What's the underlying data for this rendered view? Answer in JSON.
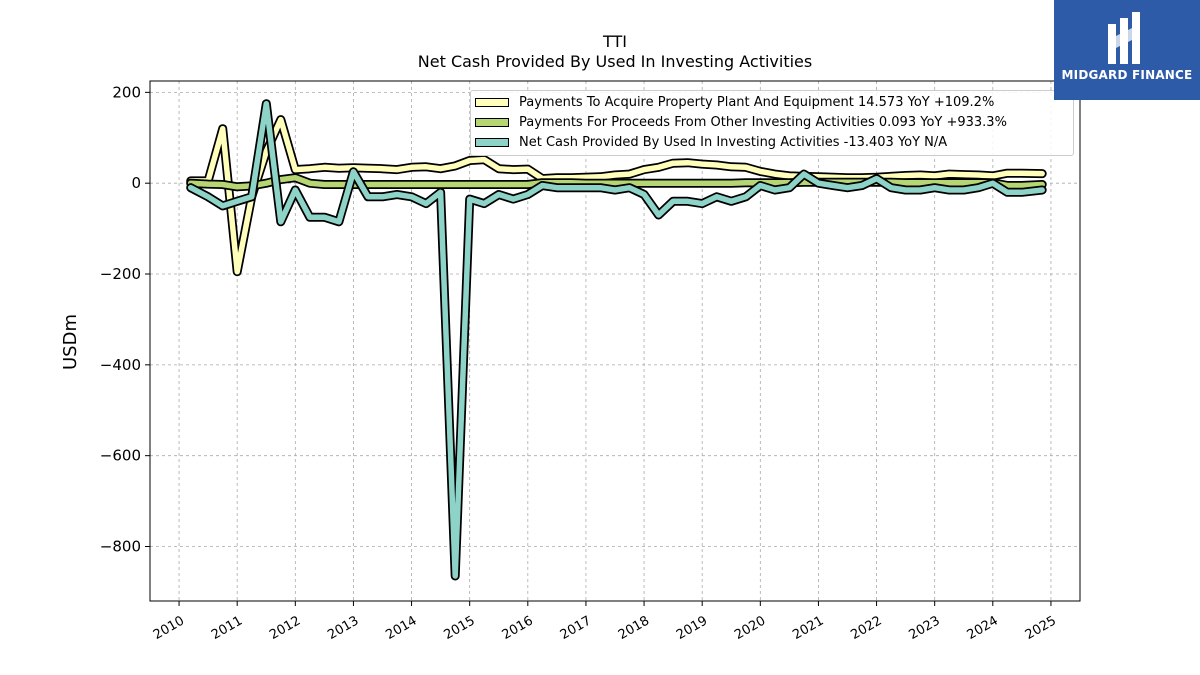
{
  "header": {
    "ticker": "TTI",
    "subtitle": "Net Cash Provided By Used In Investing Activities"
  },
  "logo": {
    "text": "MIDGARD FINANCE",
    "icon": "midgard-logo-icon",
    "background": "#2e5ba8"
  },
  "legend": {
    "items": [
      {
        "label": "Payments To Acquire Property Plant And Equipment  14.573 YoY +109.2%",
        "color": "#ffffbb"
      },
      {
        "label": "Payments For Proceeds From Other Investing Activities  0.093 YoY +933.3%",
        "color": "#b5d672"
      },
      {
        "label": "Net Cash Provided By Used In Investing Activities  -13.403 YoY N/A",
        "color": "#8dd3c7"
      }
    ]
  },
  "chart_data": {
    "type": "line",
    "ylabel": "USDm",
    "xlim": [
      2009.5,
      2025.5
    ],
    "ylim": [
      -920,
      225
    ],
    "yticks": [
      200,
      0,
      -200,
      -400,
      -600,
      -800
    ],
    "ytick_labels": [
      "200",
      "0",
      "−200",
      "−400",
      "−600",
      "−800"
    ],
    "xticks": [
      2010,
      2011,
      2012,
      2013,
      2014,
      2015,
      2016,
      2017,
      2018,
      2019,
      2020,
      2021,
      2022,
      2023,
      2024,
      2025
    ],
    "grid": true,
    "legend_position": "upper-right",
    "series": [
      {
        "name": "Payments To Acquire Property Plant And Equipment",
        "color": "#ffffbb",
        "points": [
          [
            2010.2,
            5
          ],
          [
            2010.5,
            5
          ],
          [
            2010.75,
            120
          ],
          [
            2011.0,
            -195
          ],
          [
            2011.25,
            -30
          ],
          [
            2011.5,
            70
          ],
          [
            2011.75,
            140
          ],
          [
            2012.0,
            30
          ],
          [
            2012.25,
            32
          ],
          [
            2012.5,
            35
          ],
          [
            2012.75,
            33
          ],
          [
            2013.0,
            34
          ],
          [
            2013.25,
            33
          ],
          [
            2013.5,
            32
          ],
          [
            2013.75,
            30
          ],
          [
            2014.0,
            35
          ],
          [
            2014.25,
            36
          ],
          [
            2014.5,
            32
          ],
          [
            2014.75,
            38
          ],
          [
            2015.0,
            50
          ],
          [
            2015.25,
            52
          ],
          [
            2015.5,
            32
          ],
          [
            2015.75,
            30
          ],
          [
            2016.0,
            31
          ],
          [
            2016.25,
            10
          ],
          [
            2016.5,
            12
          ],
          [
            2016.75,
            12
          ],
          [
            2017.0,
            13
          ],
          [
            2017.25,
            14
          ],
          [
            2017.5,
            18
          ],
          [
            2017.75,
            20
          ],
          [
            2018.0,
            30
          ],
          [
            2018.25,
            35
          ],
          [
            2018.5,
            44
          ],
          [
            2018.75,
            45
          ],
          [
            2019.0,
            42
          ],
          [
            2019.25,
            40
          ],
          [
            2019.5,
            36
          ],
          [
            2019.75,
            35
          ],
          [
            2020.0,
            26
          ],
          [
            2020.25,
            20
          ],
          [
            2020.5,
            16
          ],
          [
            2020.75,
            15
          ],
          [
            2021.0,
            14
          ],
          [
            2021.25,
            13
          ],
          [
            2021.5,
            12
          ],
          [
            2021.75,
            12
          ],
          [
            2022.0,
            13
          ],
          [
            2022.25,
            15
          ],
          [
            2022.5,
            17
          ],
          [
            2022.75,
            18
          ],
          [
            2023.0,
            16
          ],
          [
            2023.25,
            20
          ],
          [
            2023.5,
            19
          ],
          [
            2023.75,
            18
          ],
          [
            2024.0,
            16
          ],
          [
            2024.25,
            22
          ],
          [
            2024.5,
            22
          ],
          [
            2024.85,
            21
          ]
        ]
      },
      {
        "name": "Payments For Proceeds From Other Investing Activities",
        "color": "#b5d672",
        "points": [
          [
            2010.2,
            0
          ],
          [
            2010.5,
            -2
          ],
          [
            2010.75,
            -3
          ],
          [
            2011.0,
            -8
          ],
          [
            2011.25,
            -6
          ],
          [
            2011.5,
            0
          ],
          [
            2011.75,
            8
          ],
          [
            2012.0,
            12
          ],
          [
            2012.25,
            0
          ],
          [
            2012.5,
            -3
          ],
          [
            2012.75,
            -3
          ],
          [
            2013.0,
            -3
          ],
          [
            2013.25,
            -3
          ],
          [
            2013.5,
            -3
          ],
          [
            2013.75,
            -3
          ],
          [
            2014.0,
            -3
          ],
          [
            2014.25,
            -3
          ],
          [
            2014.5,
            -3
          ],
          [
            2014.75,
            -3
          ],
          [
            2015.0,
            -3
          ],
          [
            2015.25,
            -3
          ],
          [
            2015.5,
            -3
          ],
          [
            2015.75,
            -3
          ],
          [
            2016.0,
            -3
          ],
          [
            2016.25,
            1
          ],
          [
            2016.5,
            1
          ],
          [
            2016.75,
            1
          ],
          [
            2017.0,
            0
          ],
          [
            2017.25,
            0
          ],
          [
            2017.5,
            0
          ],
          [
            2017.75,
            0
          ],
          [
            2018.0,
            0
          ],
          [
            2018.25,
            0
          ],
          [
            2018.5,
            0
          ],
          [
            2018.75,
            0
          ],
          [
            2019.0,
            0
          ],
          [
            2019.25,
            0
          ],
          [
            2019.5,
            0
          ],
          [
            2019.75,
            1
          ],
          [
            2020.0,
            1
          ],
          [
            2020.25,
            1
          ],
          [
            2020.5,
            1
          ],
          [
            2020.75,
            2
          ],
          [
            2021.0,
            2
          ],
          [
            2021.25,
            2
          ],
          [
            2021.5,
            2
          ],
          [
            2021.75,
            2
          ],
          [
            2022.0,
            2
          ],
          [
            2022.25,
            2
          ],
          [
            2022.5,
            1
          ],
          [
            2022.75,
            1
          ],
          [
            2023.0,
            1
          ],
          [
            2023.25,
            1
          ],
          [
            2023.5,
            1
          ],
          [
            2023.75,
            1
          ],
          [
            2024.0,
            1
          ],
          [
            2024.25,
            -5
          ],
          [
            2024.5,
            -5
          ],
          [
            2024.85,
            -3
          ]
        ]
      },
      {
        "name": "Net Cash Provided By Used In Investing Activities",
        "color": "#8dd3c7",
        "points": [
          [
            2010.2,
            -10
          ],
          [
            2010.5,
            -30
          ],
          [
            2010.75,
            -50
          ],
          [
            2011.0,
            -40
          ],
          [
            2011.25,
            -30
          ],
          [
            2011.5,
            175
          ],
          [
            2011.75,
            -85
          ],
          [
            2012.0,
            -15
          ],
          [
            2012.25,
            -75
          ],
          [
            2012.5,
            -75
          ],
          [
            2012.75,
            -85
          ],
          [
            2013.0,
            25
          ],
          [
            2013.25,
            -30
          ],
          [
            2013.5,
            -30
          ],
          [
            2013.75,
            -25
          ],
          [
            2014.0,
            -30
          ],
          [
            2014.25,
            -45
          ],
          [
            2014.5,
            -20
          ],
          [
            2014.75,
            -865
          ],
          [
            2015.0,
            -35
          ],
          [
            2015.25,
            -45
          ],
          [
            2015.5,
            -25
          ],
          [
            2015.75,
            -35
          ],
          [
            2016.0,
            -25
          ],
          [
            2016.25,
            -5
          ],
          [
            2016.5,
            -10
          ],
          [
            2016.75,
            -10
          ],
          [
            2017.0,
            -10
          ],
          [
            2017.25,
            -10
          ],
          [
            2017.5,
            -15
          ],
          [
            2017.75,
            -10
          ],
          [
            2018.0,
            -25
          ],
          [
            2018.25,
            -70
          ],
          [
            2018.5,
            -40
          ],
          [
            2018.75,
            -40
          ],
          [
            2019.0,
            -45
          ],
          [
            2019.25,
            -30
          ],
          [
            2019.5,
            -40
          ],
          [
            2019.75,
            -30
          ],
          [
            2020.0,
            -5
          ],
          [
            2020.25,
            -15
          ],
          [
            2020.5,
            -10
          ],
          [
            2020.75,
            20
          ],
          [
            2021.0,
            0
          ],
          [
            2021.25,
            -5
          ],
          [
            2021.5,
            -10
          ],
          [
            2021.75,
            -5
          ],
          [
            2022.0,
            10
          ],
          [
            2022.25,
            -10
          ],
          [
            2022.5,
            -15
          ],
          [
            2022.75,
            -15
          ],
          [
            2023.0,
            -10
          ],
          [
            2023.25,
            -15
          ],
          [
            2023.5,
            -15
          ],
          [
            2023.75,
            -10
          ],
          [
            2024.0,
            0
          ],
          [
            2024.25,
            -20
          ],
          [
            2024.5,
            -20
          ],
          [
            2024.85,
            -15
          ]
        ]
      }
    ]
  }
}
